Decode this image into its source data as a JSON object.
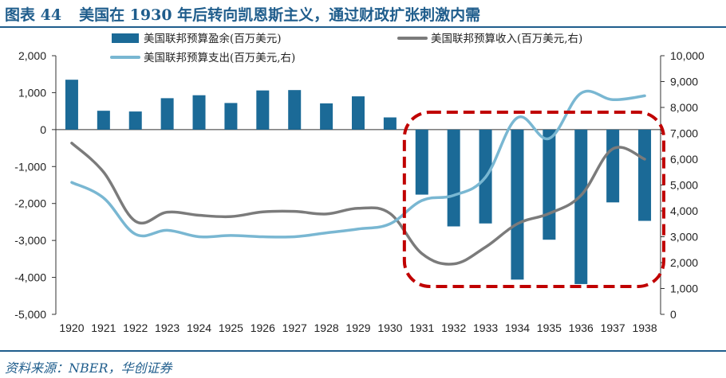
{
  "header": {
    "figure_label": "图表 44",
    "title": "美国在 1930 年后转向凯恩斯主义，通过财政扩张刺激内需"
  },
  "footer": {
    "source": "资料来源：NBER，华创证券"
  },
  "colors": {
    "accent": "#1f5d8c",
    "bar": "#1b6a97",
    "revenue": "#7b7b7b",
    "expenditure": "#79b7d2",
    "highlight": "#c00000"
  },
  "chart_data": {
    "type": "bar",
    "categories": [
      "1920",
      "1921",
      "1922",
      "1923",
      "1924",
      "1925",
      "1926",
      "1927",
      "1928",
      "1929",
      "1930",
      "1931",
      "1932",
      "1933",
      "1934",
      "1935",
      "1936",
      "1937",
      "1938"
    ],
    "series": [
      {
        "name": "美国联邦预算盈余(百万美元)",
        "type": "bar",
        "axis": "left",
        "values": [
          1350,
          510,
          490,
          850,
          930,
          720,
          1060,
          1070,
          710,
          900,
          330,
          -1760,
          -2620,
          -2540,
          -4060,
          -2980,
          -4180,
          -1970,
          -2470
        ]
      },
      {
        "name": "美国联邦预算收入(百万美元,右)",
        "type": "line",
        "axis": "right",
        "values": [
          6620,
          5500,
          3600,
          3950,
          3830,
          3780,
          3960,
          3980,
          3880,
          4100,
          3900,
          2350,
          1950,
          2600,
          3500,
          3900,
          4600,
          6400,
          6000
        ]
      },
      {
        "name": "美国联邦预算支出(百万美元,右)",
        "type": "line",
        "axis": "right",
        "values": [
          5100,
          4500,
          3100,
          3250,
          3000,
          3050,
          3000,
          3000,
          3150,
          3300,
          3500,
          4400,
          4600,
          5300,
          7600,
          6800,
          8550,
          8300,
          8450
        ]
      }
    ],
    "left_axis": {
      "ylim": [
        -5000,
        2000
      ],
      "ticks": [
        "-5,000",
        "-4,000",
        "-3,000",
        "-2,000",
        "-1,000",
        "0",
        "1,000",
        "2,000"
      ]
    },
    "right_axis": {
      "ylim": [
        0,
        10000
      ],
      "ticks": [
        "0",
        "1,000",
        "2,000",
        "3,000",
        "4,000",
        "5,000",
        "6,000",
        "7,000",
        "8,000",
        "9,000",
        "10,000"
      ]
    },
    "legend_position": "top",
    "grid": false,
    "highlight": {
      "from": "1931",
      "to": "1938",
      "style": "dashed-rounded-box"
    }
  }
}
